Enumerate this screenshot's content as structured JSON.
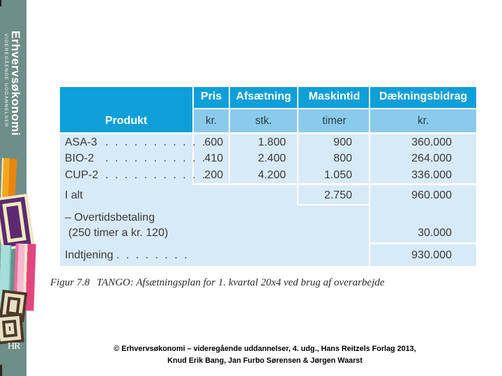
{
  "sidebar": {
    "brand_title": "Erhvervsøkonomi",
    "brand_subtitle": "VIDEREGÅENDE UDDANNELSER",
    "logo_text": "HR"
  },
  "table": {
    "produkt_header": "Produkt",
    "columns": [
      {
        "label": "Pris",
        "unit": "kr."
      },
      {
        "label": "Afsætning",
        "unit": "stk."
      },
      {
        "label": "Maskintid",
        "unit": "timer"
      },
      {
        "label": "Dækningsbidrag",
        "unit": "kr."
      }
    ],
    "products": [
      {
        "name": "ASA-3",
        "dots": ". . . . . . . . . . .",
        "pris": "600",
        "afsaetning": "1.800",
        "maskintid": "900",
        "daekningsbidrag": "360.000"
      },
      {
        "name": "BIO-2",
        "dots": ". . . . . . . . . . .",
        "pris": "410",
        "afsaetning": "2.400",
        "maskintid": "800",
        "daekningsbidrag": "264.000"
      },
      {
        "name": "CUP-2",
        "dots": ". . . . . . . . . . .",
        "pris": "200",
        "afsaetning": "4.200",
        "maskintid": "1.050",
        "daekningsbidrag": "336.000"
      }
    ],
    "total_row": {
      "label": "I alt",
      "maskintid": "2.750",
      "daekningsbidrag": "960.000"
    },
    "overtime_row": {
      "line1": "– Overtidsbetaling",
      "line2": "(250 timer a kr. 120)",
      "daekningsbidrag": "30.000"
    },
    "earnings_row": {
      "label": "Indtjening",
      "dots": ". . . . . . . .",
      "daekningsbidrag": "930.000"
    }
  },
  "caption": {
    "figure_label": "Figur 7.8",
    "text": "TANGO: Afsætningsplan for 1. kvartal 20x4 ved brug af overarbejde"
  },
  "footer": {
    "line1": "© Erhvervsøkonomi – videregående uddannelser, 4. udg., Hans Reitzels Forlag 2013,",
    "line2": "Knud Erik Bang, Jan Furbo Sørensen & Jørgen Waarst"
  },
  "colors": {
    "header_bg": "#0d9fd8",
    "subheader_bg": "#8acbec",
    "body_bg": "#d7eaf8",
    "sidebar_bg": "#6e8e88",
    "grid_line": "#ffffff"
  }
}
